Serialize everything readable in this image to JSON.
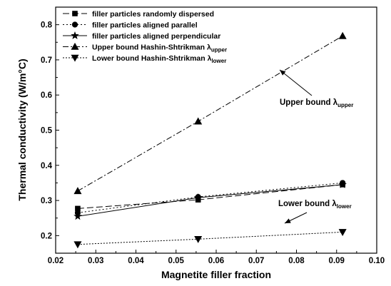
{
  "chart_data": {
    "type": "line",
    "xlabel": "Magnetite filler fraction",
    "ylabel": "Thermal conductivity (W/m°C)",
    "xlim": [
      0.02,
      0.1
    ],
    "ylim": [
      0.15,
      0.85
    ],
    "x_ticks": [
      "0.02",
      "0.03",
      "0.04",
      "0.05",
      "0.06",
      "0.07",
      "0.08",
      "0.09",
      "0.10"
    ],
    "y_ticks": [
      "0.2",
      "0.3",
      "0.4",
      "0.5",
      "0.6",
      "0.7",
      "0.8"
    ],
    "grid": false,
    "legend_position": "top-left",
    "x": [
      0.0255,
      0.0555,
      0.0915
    ],
    "series": [
      {
        "name": "filler particles randomly dispersed",
        "values": [
          0.277,
          0.302,
          0.345
        ],
        "marker": "square",
        "dash": "9,4"
      },
      {
        "name": "filler particles aligned parallel",
        "values": [
          0.265,
          0.31,
          0.35
        ],
        "marker": "circle",
        "dash": "2,3"
      },
      {
        "name": "filler particles aligned perpendicular",
        "values": [
          0.255,
          0.308,
          0.345
        ],
        "marker": "star",
        "dash": ""
      },
      {
        "name": "Upper bound Hashin-Shtrikman λ",
        "name_sub": "upper",
        "values": [
          0.327,
          0.525,
          0.768
        ],
        "marker": "triangle-up",
        "dash": "8,3,2,3"
      },
      {
        "name": "Lower bound Hashin-Shtrikman λ",
        "name_sub": "lower",
        "values": [
          0.175,
          0.19,
          0.21
        ],
        "marker": "triangle-down",
        "dash": "2,2"
      }
    ],
    "annotations": [
      {
        "text": "Upper bound λ",
        "sub": "upper"
      },
      {
        "text": "Lower bound λ",
        "sub": "lower"
      }
    ]
  }
}
